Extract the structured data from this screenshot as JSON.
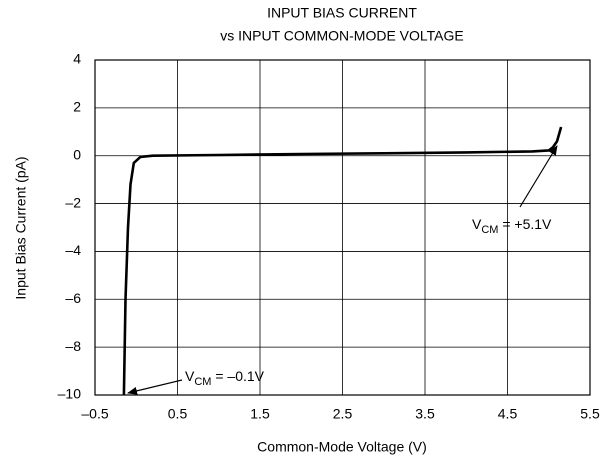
{
  "chart_data": {
    "type": "line",
    "title": [
      "INPUT BIAS CURRENT",
      "vs INPUT COMMON-MODE VOLTAGE"
    ],
    "xlabel": "Common-Mode Voltage (V)",
    "ylabel": "Input Bias Current (pA)",
    "xlim": [
      -0.5,
      5.5
    ],
    "xticks": [
      {
        "value": -0.5,
        "label": "–0.5"
      },
      0.5,
      1.5,
      2.5,
      3.5,
      4.5,
      5.5
    ],
    "ylim": [
      -10,
      4
    ],
    "yticks": [
      {
        "value": -10,
        "label": "–10"
      },
      {
        "value": -8,
        "label": "–8"
      },
      {
        "value": -6,
        "label": "–6"
      },
      {
        "value": -4,
        "label": "–4"
      },
      {
        "value": -2,
        "label": "–2"
      },
      0,
      2,
      4
    ],
    "grid": true,
    "series": [
      {
        "color": "#000000",
        "x": [
          -0.15,
          -0.13,
          -0.1,
          -0.07,
          -0.03,
          0.05,
          0.2,
          1,
          2,
          3,
          4,
          4.8,
          5.0,
          5.05,
          5.1,
          5.15
        ],
        "values": [
          -10,
          -6,
          -3,
          -1.2,
          -0.3,
          -0.05,
          0,
          0.03,
          0.07,
          0.1,
          0.14,
          0.18,
          0.22,
          0.35,
          0.6,
          1.2
        ]
      }
    ],
    "annotations": [
      {
        "text": "V",
        "sub": "CM",
        "suffix": " = –0.1V"
      },
      {
        "text": "V",
        "sub": "CM",
        "suffix": " = +5.1V"
      }
    ]
  }
}
